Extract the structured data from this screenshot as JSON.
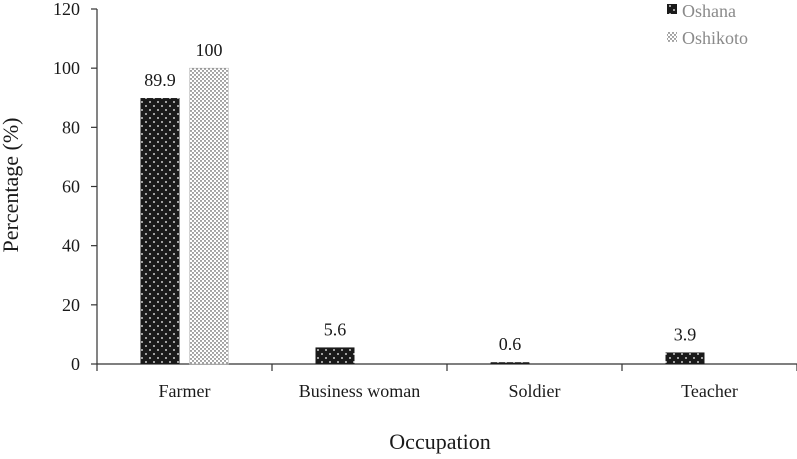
{
  "chart_data": {
    "type": "bar",
    "xlabel": "Occupation",
    "ylabel": "Percentage (%)",
    "ylim": [
      0,
      120
    ],
    "yticks": [
      0,
      20,
      40,
      60,
      80,
      100,
      120
    ],
    "categories": [
      "Farmer",
      "Business woman",
      "Soldier",
      "Teacher"
    ],
    "series": [
      {
        "name": "Oshana",
        "values": [
          89.9,
          5.6,
          0.6,
          3.9
        ],
        "labels": [
          "89.9",
          "5.6",
          "0.6",
          "3.9"
        ],
        "pattern": "dark-dotted",
        "color": "#1a1a1a"
      },
      {
        "name": "Oshikoto",
        "values": [
          100,
          0,
          0,
          0
        ],
        "labels": [
          "100",
          "",
          "",
          ""
        ],
        "pattern": "light-dotted",
        "color": "#ffffff"
      }
    ],
    "legend_position": "top-right",
    "grid": false
  }
}
